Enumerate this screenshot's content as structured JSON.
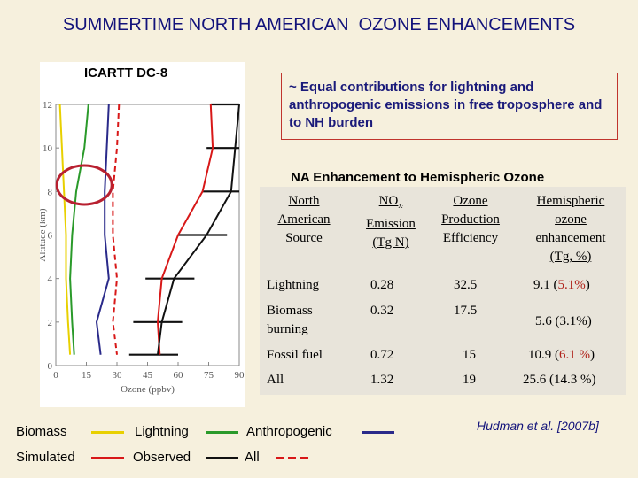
{
  "title": "SUMMERTIME NORTH AMERICAN  OZONE ENHANCEMENTS",
  "plot": {
    "label": "ICARTT DC-8",
    "xlabel": "Ozone (ppbv)",
    "ylabel": "Altitude (km)",
    "x_ticks": [
      "0",
      "15",
      "30",
      "45",
      "60",
      "75",
      "90"
    ],
    "y_ticks": [
      "0",
      "2",
      "4",
      "6",
      "8",
      "10",
      "12"
    ]
  },
  "chart_data": {
    "type": "line",
    "xlabel": "Ozone (ppbv)",
    "ylabel": "Altitude (km)",
    "xlim": [
      0,
      90
    ],
    "ylim": [
      0,
      12
    ],
    "series": [
      {
        "name": "Biomass",
        "color": "#e8d000",
        "points": [
          [
            2,
            12
          ],
          [
            3,
            10
          ],
          [
            4,
            8
          ],
          [
            5,
            6
          ],
          [
            5,
            4
          ],
          [
            6,
            2
          ],
          [
            7,
            0.5
          ]
        ]
      },
      {
        "name": "Lightning",
        "color": "#2a9a2a",
        "points": [
          [
            16,
            12
          ],
          [
            14,
            10
          ],
          [
            10,
            8
          ],
          [
            8,
            6
          ],
          [
            7,
            4
          ],
          [
            8,
            2
          ],
          [
            9,
            0.5
          ]
        ]
      },
      {
        "name": "Anthropogenic",
        "color": "#2a2a8a",
        "points": [
          [
            26,
            12
          ],
          [
            25,
            10
          ],
          [
            24,
            8
          ],
          [
            24,
            6
          ],
          [
            26,
            4
          ],
          [
            20,
            2
          ],
          [
            22,
            0.5
          ]
        ]
      },
      {
        "name": "Simulated",
        "color": "#d81818",
        "points": [
          [
            76,
            12
          ],
          [
            77,
            10
          ],
          [
            72,
            8
          ],
          [
            60,
            6
          ],
          [
            52,
            4
          ],
          [
            50,
            2
          ],
          [
            51,
            0.5
          ]
        ]
      },
      {
        "name": "Observed",
        "color": "#111111",
        "points": [
          [
            90,
            12
          ],
          [
            88,
            10
          ],
          [
            86,
            8
          ],
          [
            74,
            6
          ],
          [
            58,
            4
          ],
          [
            52,
            2
          ],
          [
            50,
            0.5
          ]
        ]
      },
      {
        "name": "All",
        "color": "#d81818",
        "dashed": true,
        "points": [
          [
            31,
            12
          ],
          [
            30,
            10
          ],
          [
            28,
            8
          ],
          [
            28,
            6
          ],
          [
            30,
            4
          ],
          [
            28,
            2
          ],
          [
            30,
            0.5
          ]
        ]
      }
    ]
  },
  "note": "~ Equal contributions for lightning and anthropogenic emissions in free troposphere and to NH burden",
  "table": {
    "title": "NA Enhancement to Hemispheric Ozone",
    "headers": {
      "source": [
        "North",
        "American",
        "Source"
      ],
      "nox": [
        "NO",
        "Emission",
        "(Tg N)"
      ],
      "nox_sub": "x",
      "ope": [
        "Ozone",
        "Production",
        "Efficiency"
      ],
      "hemi": [
        "Hemispheric",
        "ozone",
        "enhancement",
        "(Tg, %)"
      ]
    },
    "rows": [
      {
        "source": "Lightning",
        "nox": "0.28",
        "ope": "32.5",
        "hemi_a": "9.1 (",
        "hemi_b": "5.1%",
        "hemi_c": ")"
      },
      {
        "source_l1": "Biomass",
        "source_l2": "burning",
        "nox": "0.32",
        "ope": "17.5",
        "hemi": "5.6 (3.1%)"
      },
      {
        "source": "Fossil fuel",
        "nox": "0.72",
        "ope": "15",
        "hemi_a": "10.9 (",
        "hemi_b": "6.1 %",
        "hemi_c": ")"
      },
      {
        "source": "All",
        "nox": "1.32",
        "ope": "19",
        "hemi": "25.6 (14.3 %)"
      }
    ]
  },
  "legend": {
    "biomass": "Biomass",
    "lightning": "Lightning",
    "anthropogenic": "Anthropogenic",
    "simulated": "Simulated",
    "observed": "Observed",
    "all": "All"
  },
  "citation": "Hudman et al. [2007b]"
}
